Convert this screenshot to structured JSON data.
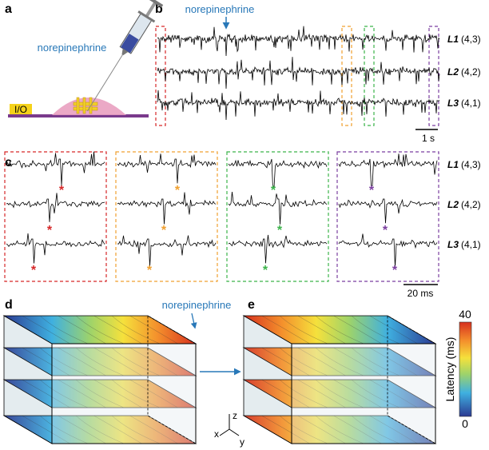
{
  "panel_labels": [
    "a",
    "b",
    "c",
    "d",
    "e"
  ],
  "panel_a": {
    "drug": "norepinephrine",
    "io": "I/O"
  },
  "panel_b": {
    "drug": "norepinephrine",
    "scale_bar": "1 s"
  },
  "layers": [
    {
      "name": "L1",
      "position": "(4,3)"
    },
    {
      "name": "L2",
      "position": "(4,2)"
    },
    {
      "name": "L3",
      "position": "(4,1)"
    }
  ],
  "panel_c": {
    "marker": "*",
    "scale_bar": "20 ms"
  },
  "panel_d": {
    "drug": "norepinephrine",
    "axes": [
      "x",
      "y",
      "z"
    ]
  },
  "colorbar": {
    "label": "Latency (ms)",
    "max": 40,
    "min": 0
  }
}
